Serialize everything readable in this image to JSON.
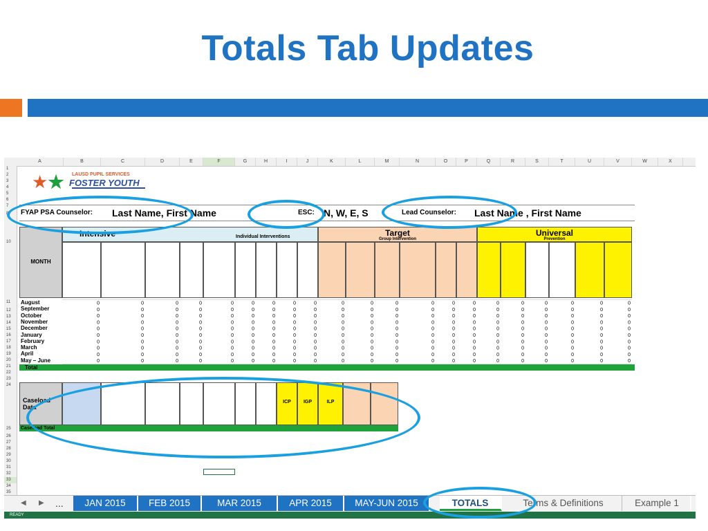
{
  "title": "Totals Tab Updates",
  "colors": {
    "accent_blue": "#1f73c2",
    "accent_orange": "#ee7623",
    "green": "#1fa23a",
    "highlight": "#1aa0e0"
  },
  "logo": {
    "line1": "LAUSD PUPIL SERVICES",
    "line2": "FOSTER YOUTH"
  },
  "counselor": {
    "label": "FYAP PSA Counselor:",
    "value": "Last Name, First Name"
  },
  "esc": {
    "label": "ESC:",
    "value": "N, W, E, S"
  },
  "lead": {
    "label": "Lead Counselor:",
    "value": "Last Name , First Name"
  },
  "columns": [
    "A",
    "B",
    "C",
    "D",
    "E",
    "F",
    "G",
    "H",
    "I",
    "J",
    "K",
    "L",
    "M",
    "N",
    "O",
    "P",
    "Q",
    "R",
    "S",
    "T",
    "U",
    "V",
    "W",
    "X"
  ],
  "headers": {
    "intensive": "Intensive",
    "individual": "Individual Interventions",
    "target": "Target",
    "group": "Group Intervention",
    "universal": "Universal",
    "prevention": "Prevention",
    "month": "MONTH"
  },
  "months": [
    "August",
    "September",
    "October",
    "November",
    "December",
    "January",
    "February",
    "March",
    "April",
    "May – June"
  ],
  "total_label": "Total",
  "caseload_label": "Caseload Data",
  "caseload_total_label": "Caseload Total",
  "tabs": {
    "more": "...",
    "jan": "JAN 2015",
    "feb": "FEB 2015",
    "mar": "MAR 2015",
    "apr": "APR 2015",
    "mayjun": "MAY-JUN 2015",
    "totals": "TOTALS",
    "terms": "Terms & Definitions",
    "example": "Example 1"
  },
  "status": "READY"
}
